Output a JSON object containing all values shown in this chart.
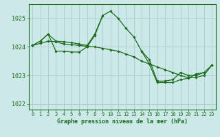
{
  "title": "Graphe pression niveau de la mer (hPa)",
  "bg_color": "#cce8e8",
  "grid_color": "#aacccc",
  "line_color": "#1a6b1a",
  "marker_color": "#1a6b1a",
  "xlim": [
    -0.5,
    23.5
  ],
  "ylim": [
    1021.8,
    1025.5
  ],
  "yticks": [
    1022,
    1023,
    1024,
    1025
  ],
  "xticks": [
    0,
    1,
    2,
    3,
    4,
    5,
    6,
    7,
    8,
    9,
    10,
    11,
    12,
    13,
    14,
    15,
    16,
    17,
    18,
    19,
    20,
    21,
    22,
    23
  ],
  "series": [
    [
      1024.05,
      1024.2,
      1024.45,
      1023.85,
      1023.85,
      1023.82,
      1023.82,
      1024.0,
      1024.4,
      1025.1,
      1025.25,
      1025.0,
      1024.65,
      1024.35,
      1023.85,
      1023.55,
      1022.8,
      1022.8,
      1022.85,
      1023.1,
      1023.0,
      1023.0,
      1023.1,
      null
    ],
    [
      1024.05,
      1024.2,
      1024.45,
      1024.2,
      1024.18,
      1024.15,
      1024.1,
      1024.05,
      1024.45,
      1025.1,
      null,
      null,
      null,
      null,
      null,
      null,
      null,
      null,
      null,
      null,
      null,
      null,
      null,
      null
    ],
    [
      1024.05,
      null,
      null,
      null,
      null,
      null,
      null,
      null,
      null,
      null,
      null,
      null,
      null,
      null,
      1023.85,
      1023.4,
      1022.75,
      1022.75,
      1022.75,
      1022.85,
      1022.9,
      1023.05,
      1023.1,
      1023.35
    ],
    [
      1024.05,
      1024.12,
      1024.2,
      1024.18,
      1024.1,
      1024.08,
      1024.05,
      1024.02,
      1024.0,
      1023.95,
      1023.9,
      1023.85,
      1023.75,
      1023.65,
      1023.5,
      1023.4,
      1023.3,
      1023.2,
      1023.1,
      1023.0,
      1022.92,
      1022.93,
      1023.0,
      1023.35
    ]
  ]
}
